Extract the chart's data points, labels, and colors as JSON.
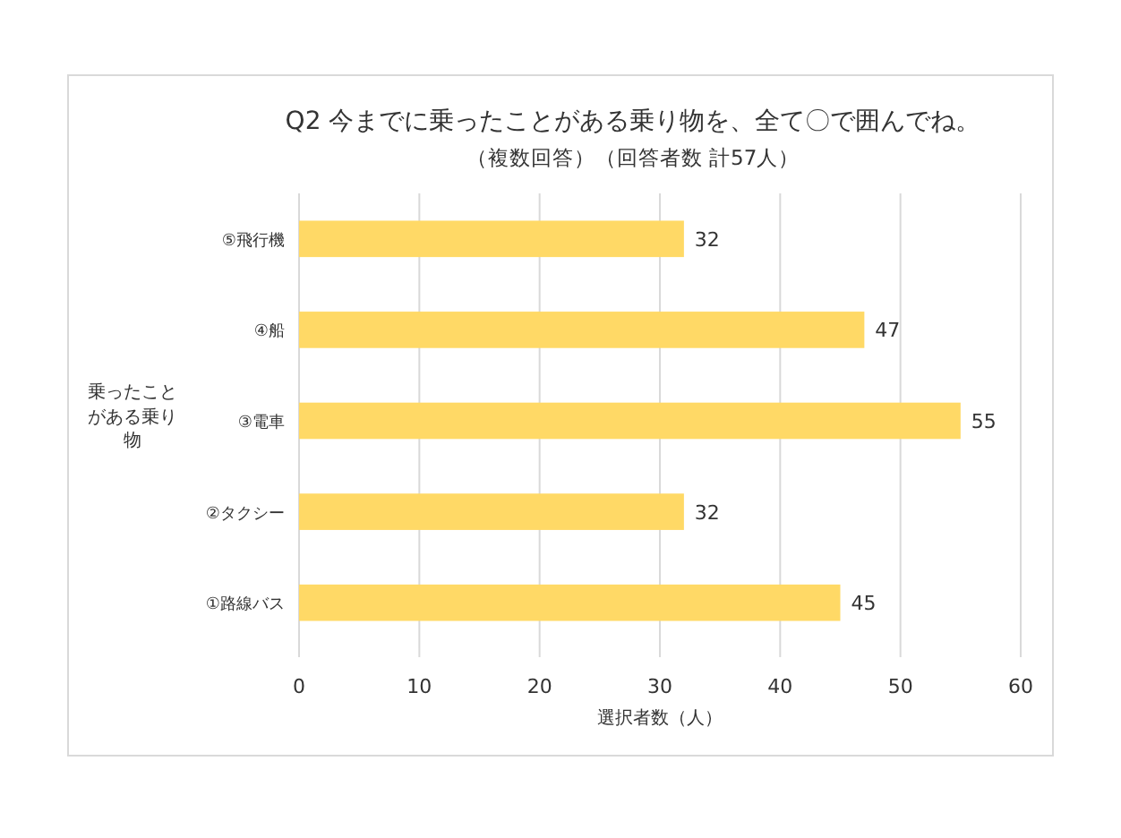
{
  "chart_data": {
    "type": "bar",
    "orientation": "horizontal",
    "title": "Q2 今までに乗ったことがある乗り物を、全て〇で囲んでね。",
    "subtitle": "（複数回答）（回答者数 計57人）",
    "xlabel": "選択者数（人）",
    "ylabel": "乗ったことがある乗り物",
    "categories": [
      "⑤飛行機",
      "④船",
      "③電車",
      "②タクシー",
      "①路線バス"
    ],
    "values": [
      32,
      47,
      55,
      32,
      45
    ],
    "color": "#ffd966",
    "xlim": [
      0,
      60
    ],
    "xticks": [
      0,
      10,
      20,
      30,
      40,
      50,
      60
    ],
    "grid": "x",
    "data_labels": true
  }
}
